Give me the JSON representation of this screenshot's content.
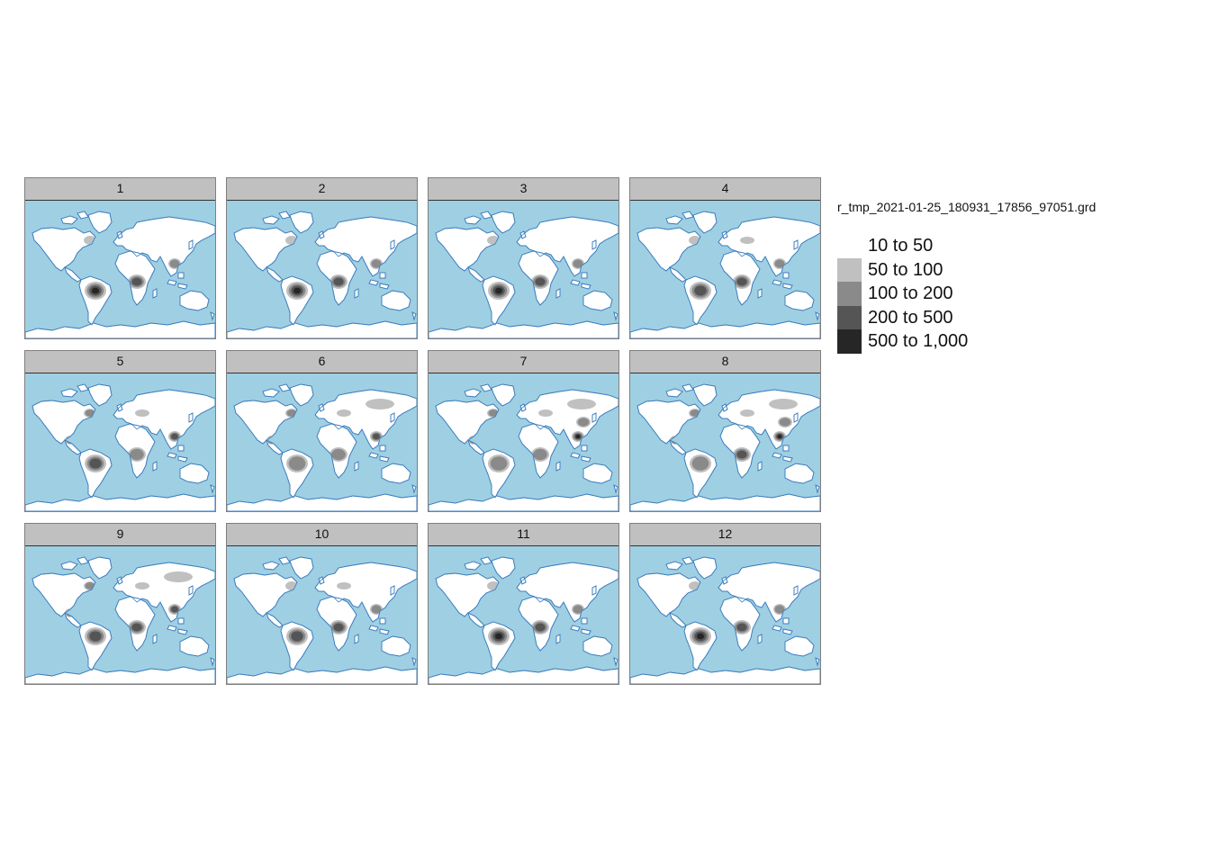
{
  "colors": {
    "ocean": "#9fcfe2",
    "land": "#ffffff",
    "coast": "#3d7fc0",
    "strip_bg": "#c0c0c0"
  },
  "panels": [
    {
      "label": "1",
      "blobs": [
        [
          "sa",
          4
        ],
        [
          "af",
          3
        ],
        [
          "se",
          2
        ],
        [
          "na",
          1
        ]
      ]
    },
    {
      "label": "2",
      "blobs": [
        [
          "sa",
          4
        ],
        [
          "af",
          3
        ],
        [
          "se",
          2
        ],
        [
          "na",
          1
        ]
      ]
    },
    {
      "label": "3",
      "blobs": [
        [
          "sa",
          4
        ],
        [
          "af",
          3
        ],
        [
          "se",
          2
        ],
        [
          "na",
          1
        ]
      ]
    },
    {
      "label": "4",
      "blobs": [
        [
          "sa",
          3
        ],
        [
          "af",
          3
        ],
        [
          "se",
          2
        ],
        [
          "na",
          1
        ],
        [
          "eu",
          1
        ]
      ]
    },
    {
      "label": "5",
      "blobs": [
        [
          "sa",
          3
        ],
        [
          "af",
          2
        ],
        [
          "se",
          3
        ],
        [
          "na",
          2
        ],
        [
          "ca",
          3
        ],
        [
          "eu",
          1
        ]
      ]
    },
    {
      "label": "6",
      "blobs": [
        [
          "sa",
          2
        ],
        [
          "af",
          2
        ],
        [
          "se",
          3
        ],
        [
          "na",
          2
        ],
        [
          "ca",
          3
        ],
        [
          "eu",
          1
        ],
        [
          "si",
          1
        ]
      ]
    },
    {
      "label": "7",
      "blobs": [
        [
          "sa",
          2
        ],
        [
          "af",
          2
        ],
        [
          "se",
          4
        ],
        [
          "na",
          2
        ],
        [
          "ca",
          3
        ],
        [
          "eu",
          1
        ],
        [
          "si",
          1
        ],
        [
          "ea",
          2
        ]
      ]
    },
    {
      "label": "8",
      "blobs": [
        [
          "sa",
          2
        ],
        [
          "af",
          3
        ],
        [
          "se",
          4
        ],
        [
          "na",
          2
        ],
        [
          "ca",
          3
        ],
        [
          "eu",
          1
        ],
        [
          "si",
          1
        ],
        [
          "ea",
          2
        ]
      ]
    },
    {
      "label": "9",
      "blobs": [
        [
          "sa",
          3
        ],
        [
          "af",
          3
        ],
        [
          "se",
          3
        ],
        [
          "na",
          2
        ],
        [
          "ca",
          3
        ],
        [
          "eu",
          1
        ],
        [
          "si",
          1
        ]
      ]
    },
    {
      "label": "10",
      "blobs": [
        [
          "sa",
          3
        ],
        [
          "af",
          3
        ],
        [
          "se",
          2
        ],
        [
          "na",
          1
        ],
        [
          "eu",
          1
        ]
      ]
    },
    {
      "label": "11",
      "blobs": [
        [
          "sa",
          4
        ],
        [
          "af",
          3
        ],
        [
          "se",
          2
        ],
        [
          "na",
          1
        ]
      ]
    },
    {
      "label": "12",
      "blobs": [
        [
          "sa",
          4
        ],
        [
          "af",
          3
        ],
        [
          "se",
          2
        ],
        [
          "na",
          1
        ]
      ]
    }
  ],
  "legend": {
    "title": "r_tmp_2021-01-25_180931_17856_97051.grd",
    "items": [
      {
        "label": "10 to 50",
        "color": "#ffffff"
      },
      {
        "label": "50 to 100",
        "color": "#c0c0c0"
      },
      {
        "label": "100 to 200",
        "color": "#8a8a8a"
      },
      {
        "label": "200 to 500",
        "color": "#555555"
      },
      {
        "label": "500 to 1,000",
        "color": "#262626"
      }
    ]
  }
}
